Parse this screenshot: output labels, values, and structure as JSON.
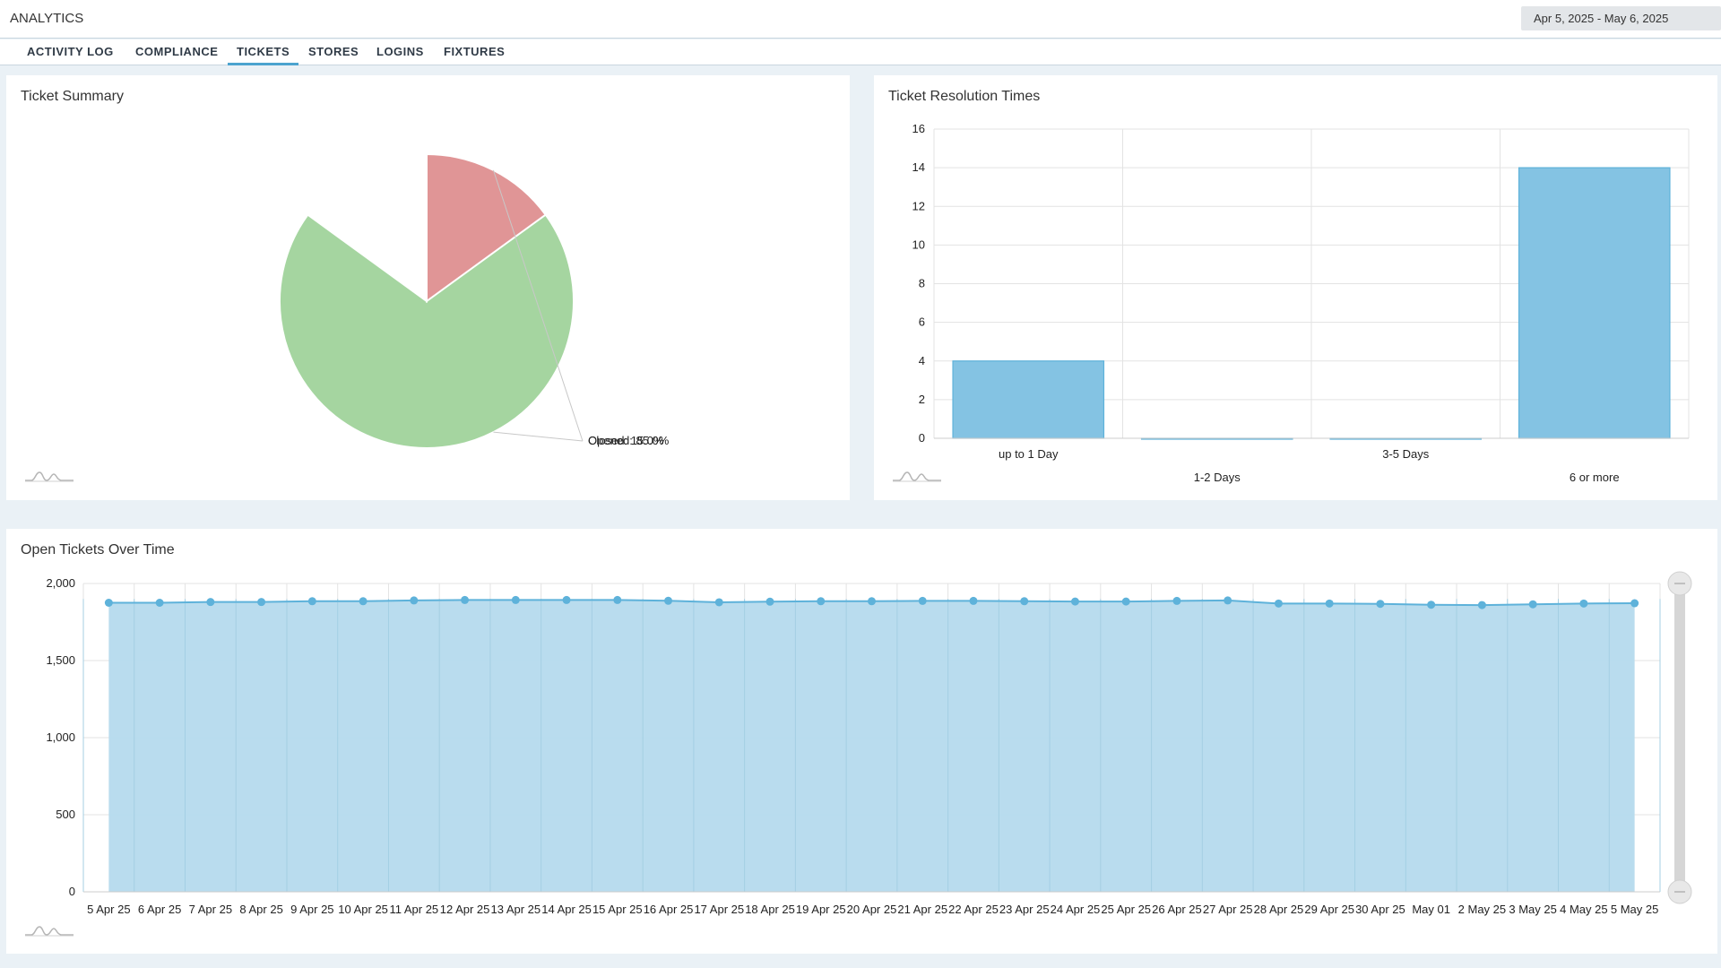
{
  "app": {
    "title": "ANALYTICS",
    "date_range": "Apr 5, 2025 - May 6, 2025"
  },
  "tabs": [
    {
      "label": "ACTIVITY LOG",
      "active": false
    },
    {
      "label": "COMPLIANCE",
      "active": false
    },
    {
      "label": "TICKETS",
      "active": true
    },
    {
      "label": "STORES",
      "active": false
    },
    {
      "label": "LOGINS",
      "active": false
    },
    {
      "label": "FIXTURES",
      "active": false
    }
  ],
  "colors": {
    "accent": "#4ba3cf",
    "pie_opened": "#a5d5a0",
    "pie_closed": "#e09596",
    "bar_fill": "#84c3e3",
    "area_fill": "#b5daed",
    "area_line": "#5eb2da"
  },
  "panels": {
    "summary_title": "Ticket Summary",
    "resolution_title": "Ticket Resolution Times",
    "over_time_title": "Open Tickets Over Time"
  },
  "chart_data": [
    {
      "type": "pie",
      "title": "Ticket Summary",
      "slices": [
        {
          "label": "Opened",
          "value": 85.0,
          "text": "Opened: 85.0%"
        },
        {
          "label": "Closed",
          "value": 15.0,
          "text": "Closed: 15.0%"
        }
      ]
    },
    {
      "type": "bar",
      "title": "Ticket Resolution Times",
      "categories": [
        "up to 1 Day",
        "1-2 Days",
        "3-5 Days",
        "6 or more"
      ],
      "values": [
        4,
        0,
        0,
        14
      ],
      "ylim": [
        0,
        16
      ],
      "yticks": [
        0,
        2,
        4,
        6,
        8,
        10,
        12,
        14,
        16
      ],
      "grid": true
    },
    {
      "type": "area",
      "title": "Open Tickets Over Time",
      "x": [
        "5 Apr 25",
        "6 Apr 25",
        "7 Apr 25",
        "8 Apr 25",
        "9 Apr 25",
        "10 Apr 25",
        "11 Apr 25",
        "12 Apr 25",
        "13 Apr 25",
        "14 Apr 25",
        "15 Apr 25",
        "16 Apr 25",
        "17 Apr 25",
        "18 Apr 25",
        "19 Apr 25",
        "20 Apr 25",
        "21 Apr 25",
        "22 Apr 25",
        "23 Apr 25",
        "24 Apr 25",
        "25 Apr 25",
        "26 Apr 25",
        "27 Apr 25",
        "28 Apr 25",
        "29 Apr 25",
        "30 Apr 25",
        "1 May 25",
        "2 May 25",
        "3 May 25",
        "4 May 25",
        "5 May 25"
      ],
      "x_tick_labels": [
        "5 Apr 25",
        "6 Apr 25",
        "7 Apr 25",
        "8 Apr 25",
        "9 Apr 25",
        "10 Apr 25",
        "11 Apr 25",
        "12 Apr 25",
        "13 Apr 25",
        "14 Apr 25",
        "15 Apr 25",
        "16 Apr 25",
        "17 Apr 25",
        "18 Apr 25",
        "19 Apr 25",
        "20 Apr 25",
        "21 Apr 25",
        "22 Apr 25",
        "23 Apr 25",
        "24 Apr 25",
        "25 Apr 25",
        "26 Apr 25",
        "27 Apr 25",
        "28 Apr 25",
        "29 Apr 25",
        "30 Apr 25",
        "May 01",
        "2 May 25",
        "3 May 25",
        "4 May 25",
        "5 May 25"
      ],
      "values": [
        1875,
        1875,
        1880,
        1880,
        1885,
        1885,
        1890,
        1893,
        1893,
        1893,
        1893,
        1888,
        1878,
        1882,
        1885,
        1885,
        1887,
        1887,
        1885,
        1883,
        1883,
        1887,
        1890,
        1870,
        1870,
        1868,
        1862,
        1860,
        1865,
        1870,
        1872
      ],
      "ylim": [
        0,
        2000
      ],
      "yticks": [
        0,
        500,
        1000,
        1500,
        2000
      ],
      "ytick_labels": [
        "0",
        "500",
        "1,000",
        "1,500",
        "2,000"
      ],
      "grid": true
    }
  ]
}
